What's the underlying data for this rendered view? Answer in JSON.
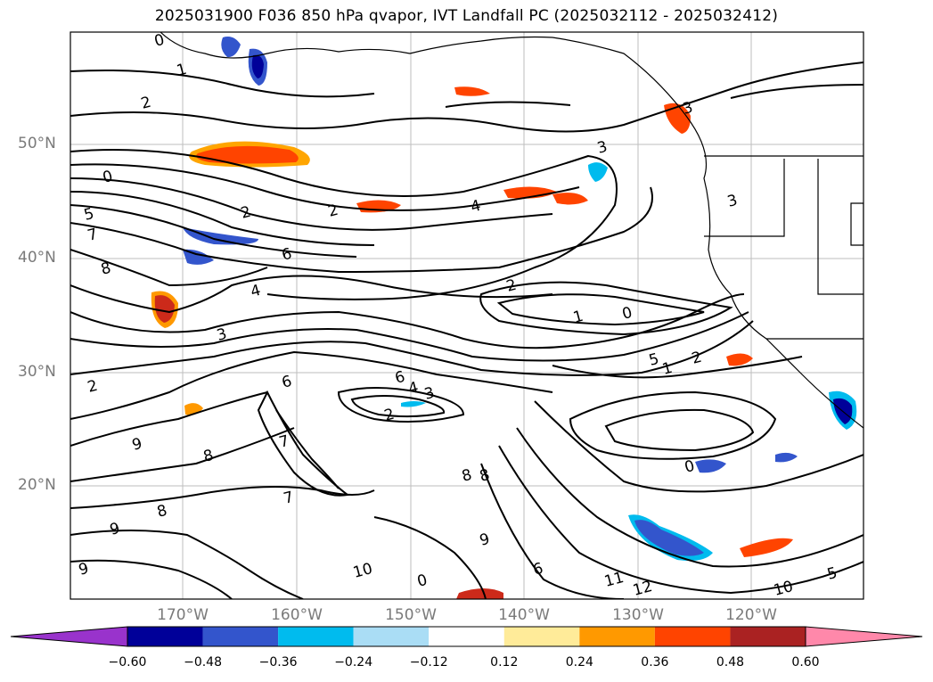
{
  "title": "2025031900 F036 850 hPa qvapor, IVT Landfall PC (2025032112 - 2025032412)",
  "map": {
    "lat_labels": [
      "50°N",
      "40°N",
      "30°N",
      "20°N"
    ],
    "lon_labels": [
      "170°W",
      "160°W",
      "150°W",
      "140°W",
      "130°W",
      "120°W"
    ],
    "contour_labels": [
      "0",
      "1",
      "2",
      "2",
      "2",
      "3",
      "3",
      "4",
      "4",
      "5",
      "6",
      "7",
      "8",
      "9",
      "6",
      "4",
      "3",
      "2",
      "1",
      "0",
      "5",
      "1",
      "2",
      "3",
      "2",
      "8",
      "9",
      "7",
      "8",
      "9",
      "10",
      "11",
      "12",
      "10",
      "5",
      "6",
      "0",
      "0",
      "7",
      "6",
      "8",
      "9",
      "0",
      "3",
      "2",
      "8"
    ],
    "gridlines": true
  },
  "colorbar": {
    "levels": [
      "-0.60",
      "-0.48",
      "-0.36",
      "-0.24",
      "-0.12",
      "0.12",
      "0.24",
      "0.36",
      "0.48",
      "0.60"
    ],
    "colors": [
      "#9933cc",
      "#000099",
      "#3355cc",
      "#00bbee",
      "#aaddf5",
      "#ffffff",
      "#ffeb99",
      "#ff9900",
      "#ff4400",
      "#aa2222",
      "#ff88aa"
    ],
    "extend": "both"
  }
}
